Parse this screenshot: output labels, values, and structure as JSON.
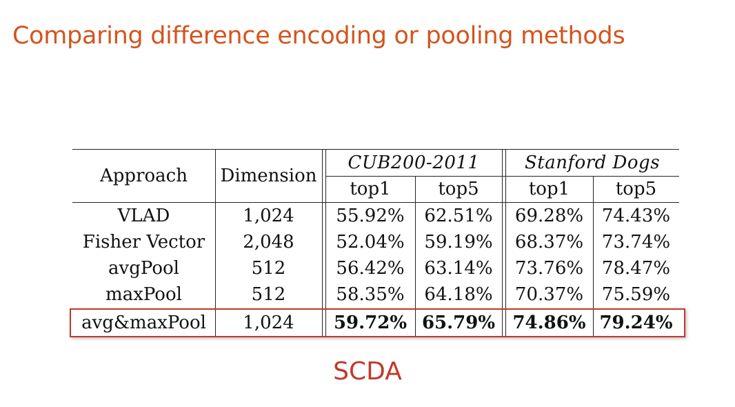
{
  "slide": {
    "title": "Comparing difference encoding or pooling methods",
    "caption": "SCDA",
    "title_color": "#d2541e",
    "caption_color": "#c0392b",
    "highlight_color": "#c0392b"
  },
  "table": {
    "headers": {
      "approach": "Approach",
      "dimension": "Dimension",
      "dataset1": "CUB200-2011",
      "dataset2": "Stanford Dogs",
      "top1": "top1",
      "top5": "top5"
    },
    "rows": [
      {
        "approach": "VLAD",
        "dimension": "1,024",
        "cub_top1": "55.92%",
        "cub_top5": "62.51%",
        "dogs_top1": "69.28%",
        "dogs_top5": "74.43%"
      },
      {
        "approach": "Fisher Vector",
        "dimension": "2,048",
        "cub_top1": "52.04%",
        "cub_top5": "59.19%",
        "dogs_top1": "68.37%",
        "dogs_top5": "73.74%"
      },
      {
        "approach": "avgPool",
        "dimension": "512",
        "cub_top1": "56.42%",
        "cub_top5": "63.14%",
        "dogs_top1": "73.76%",
        "dogs_top5": "78.47%"
      },
      {
        "approach": "maxPool",
        "dimension": "512",
        "cub_top1": "58.35%",
        "cub_top5": "64.18%",
        "dogs_top1": "70.37%",
        "dogs_top5": "75.59%"
      },
      {
        "approach": "avg&maxPool",
        "dimension": "1,024",
        "cub_top1": "59.72%",
        "cub_top5": "65.79%",
        "dogs_top1": "74.86%",
        "dogs_top5": "79.24%"
      }
    ]
  }
}
